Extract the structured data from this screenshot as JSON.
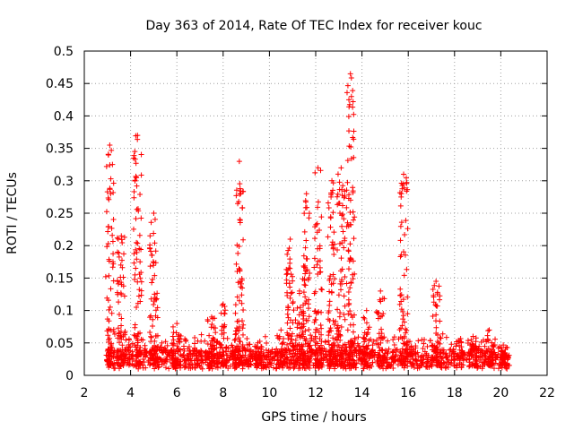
{
  "chart_data": {
    "type": "scatter",
    "title": "Day 363 of 2014, Rate Of TEC Index for receiver kouc",
    "xlabel": "GPS time / hours",
    "ylabel": "ROTI / TECUs",
    "xlim": [
      2,
      22
    ],
    "ylim": [
      0,
      0.5
    ],
    "xticks": [
      2,
      4,
      6,
      8,
      10,
      12,
      14,
      16,
      18,
      20,
      22
    ],
    "yticks": [
      0,
      0.05,
      0.1,
      0.15,
      0.2,
      0.25,
      0.3,
      0.35,
      0.4,
      0.45,
      0.5
    ],
    "xtick_labels": [
      "2",
      "4",
      "6",
      "8",
      "10",
      "12",
      "14",
      "16",
      "18",
      "20",
      "22"
    ],
    "ytick_labels": [
      "0",
      "0.05",
      "0.1",
      "0.15",
      "0.2",
      "0.25",
      "0.3",
      "0.35",
      "0.4",
      "0.45",
      "0.5"
    ],
    "grid": true,
    "marker": "+",
    "color": "#ff0000",
    "series": [
      {
        "name": "ROTI",
        "baseline_range": [
          3.0,
          20.3
        ],
        "baseline_band": [
          0.01,
          0.04
        ],
        "bursts": [
          {
            "x": 3.1,
            "peak": 0.355
          },
          {
            "x": 3.6,
            "peak": 0.215
          },
          {
            "x": 4.3,
            "peak": 0.37
          },
          {
            "x": 5.0,
            "peak": 0.25
          },
          {
            "x": 6.0,
            "peak": 0.08
          },
          {
            "x": 7.5,
            "peak": 0.09
          },
          {
            "x": 8.0,
            "peak": 0.11
          },
          {
            "x": 8.7,
            "peak": 0.33
          },
          {
            "x": 9.5,
            "peak": 0.05
          },
          {
            "x": 10.5,
            "peak": 0.07
          },
          {
            "x": 10.9,
            "peak": 0.21
          },
          {
            "x": 11.3,
            "peak": 0.13
          },
          {
            "x": 11.6,
            "peak": 0.28
          },
          {
            "x": 12.1,
            "peak": 0.32
          },
          {
            "x": 12.7,
            "peak": 0.3
          },
          {
            "x": 13.1,
            "peak": 0.32
          },
          {
            "x": 13.5,
            "peak": 0.465
          },
          {
            "x": 14.2,
            "peak": 0.1
          },
          {
            "x": 14.8,
            "peak": 0.13
          },
          {
            "x": 15.8,
            "peak": 0.31
          },
          {
            "x": 17.2,
            "peak": 0.145
          },
          {
            "x": 18.8,
            "peak": 0.06
          },
          {
            "x": 19.5,
            "peak": 0.07
          },
          {
            "x": 20.2,
            "peak": 0.04
          }
        ]
      }
    ]
  }
}
